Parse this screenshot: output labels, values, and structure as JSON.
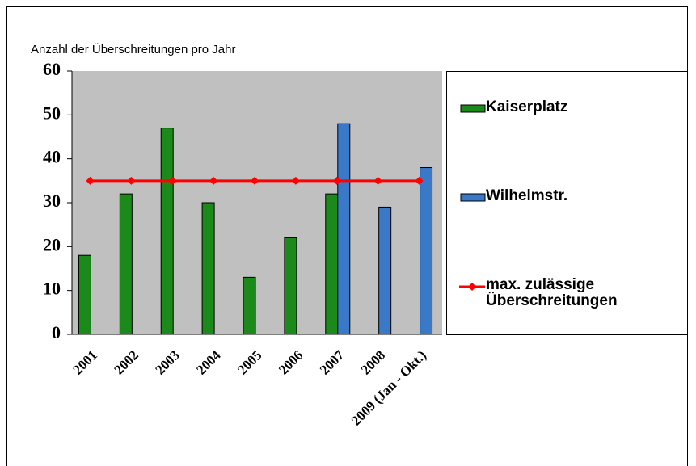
{
  "chart_data": {
    "type": "bar",
    "title": "Anzahl der Überschreitungen pro Jahr",
    "categories": [
      "2001",
      "2002",
      "2003",
      "2004",
      "2005",
      "2006",
      "2007",
      "2008",
      "2009 (Jan - Okt.)"
    ],
    "series": [
      {
        "name": "Kaiserplatz",
        "color": "#1b8a1b",
        "values": [
          18,
          32,
          47,
          30,
          13,
          22,
          32,
          null,
          null
        ]
      },
      {
        "name": "Wilhelmstr.",
        "color": "#3a78c8",
        "values": [
          null,
          null,
          null,
          null,
          null,
          null,
          48,
          29,
          38
        ]
      },
      {
        "name": "max. zulässige Überschreitungen",
        "type": "line",
        "color": "#ff0000",
        "values": [
          35,
          35,
          35,
          35,
          35,
          35,
          35,
          35,
          35
        ]
      }
    ],
    "ylim": [
      0,
      60
    ],
    "yticks": [
      0,
      10,
      20,
      30,
      40,
      50,
      60
    ],
    "plot_background": "#c0c0c0"
  }
}
